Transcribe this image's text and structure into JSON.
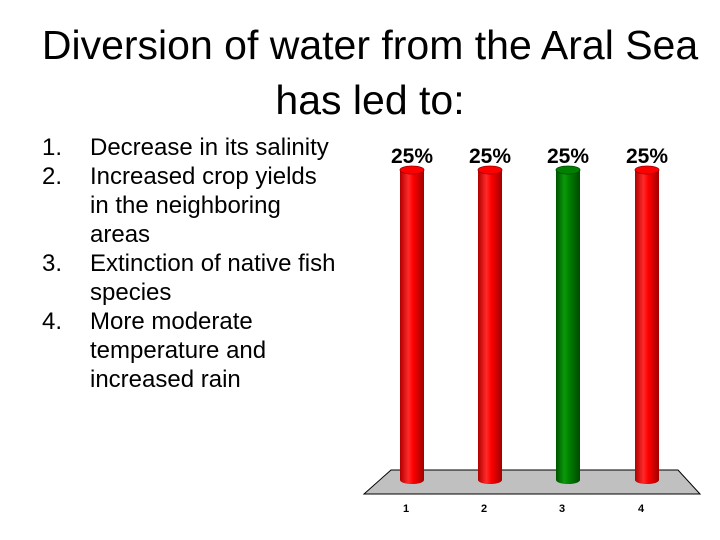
{
  "slide": {
    "title": "Diversion of water from the Aral Sea has led to:"
  },
  "choices": [
    {
      "number": "1.",
      "text": "Decrease in its salinity"
    },
    {
      "number": "2.",
      "text": "Increased crop yields in the neighboring areas"
    },
    {
      "number": "3.",
      "text": "Extinction of native fish species"
    },
    {
      "number": "4.",
      "text": "More moderate temperature and increased rain"
    }
  ],
  "chart_data": {
    "type": "bar",
    "categories": [
      "1",
      "2",
      "3",
      "4"
    ],
    "values": [
      25,
      25,
      25,
      25
    ],
    "data_labels": [
      "25%",
      "25%",
      "25%",
      "25%"
    ],
    "ylim": [
      0,
      25
    ],
    "bar_colors": [
      "#ff0000",
      "#ff0000",
      "#008000",
      "#ff0000"
    ],
    "floor_color": "#c0c0c0",
    "grid": false
  }
}
